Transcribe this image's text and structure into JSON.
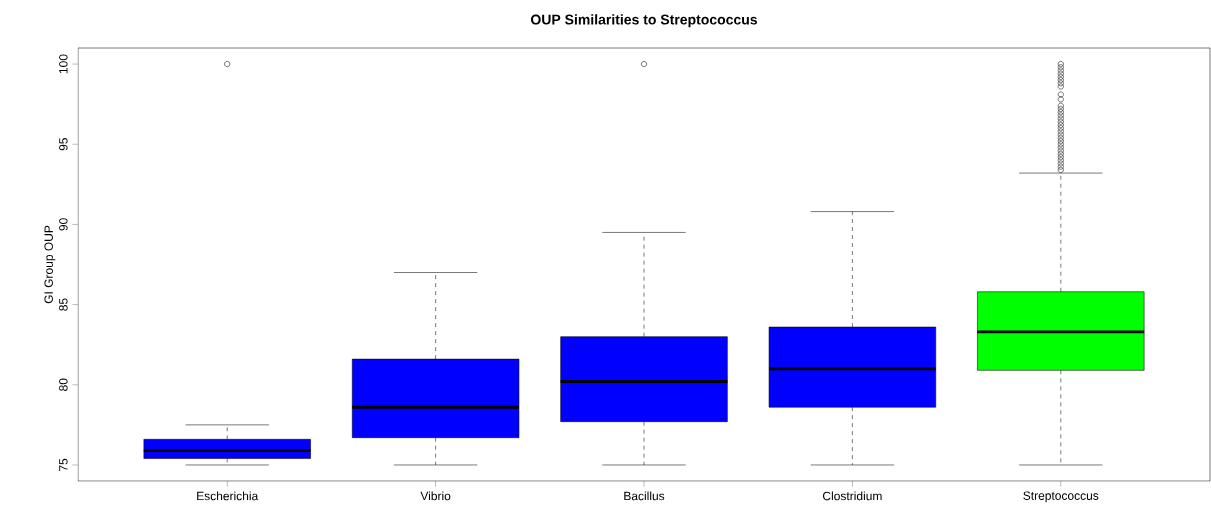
{
  "chart_data": {
    "type": "box",
    "title": "OUP Similarities to Streptococcus",
    "ylabel": "GI Group OUP",
    "categories": [
      "Escherichia",
      "Vibrio",
      "Bacillus",
      "Clostridium",
      "Streptococcus"
    ],
    "colors": [
      "#0000ff",
      "#0000ff",
      "#0000ff",
      "#0000ff",
      "#00ff00"
    ],
    "boxes": [
      {
        "low": 75,
        "q1": 75.4,
        "median": 75.9,
        "q3": 76.6,
        "high": 77.5,
        "outliers": [
          100
        ]
      },
      {
        "low": 75,
        "q1": 76.7,
        "median": 78.6,
        "q3": 81.6,
        "high": 87.0
      },
      {
        "low": 75,
        "q1": 77.7,
        "median": 80.2,
        "q3": 83.0,
        "high": 89.5,
        "outliers": [
          100
        ]
      },
      {
        "low": 75,
        "q1": 78.6,
        "median": 81.0,
        "q3": 83.6,
        "high": 90.8
      },
      {
        "low": 75,
        "q1": 80.9,
        "median": 83.3,
        "q3": 85.8,
        "high": 93.2,
        "outliers": [
          100,
          99.8,
          99.6,
          99.4,
          99.2,
          99.0,
          98.8,
          98.6,
          98.1,
          97.8,
          97.4,
          97.2,
          97.0,
          96.8,
          96.6,
          96.4,
          96.2,
          96.0,
          95.8,
          95.6,
          95.4,
          95.2,
          95.0,
          94.8,
          94.6,
          94.4,
          94.2,
          94.0,
          93.8,
          93.6,
          93.4
        ]
      }
    ],
    "ylim": [
      74,
      101
    ],
    "yticks": [
      75,
      80,
      85,
      90,
      95,
      100
    ],
    "marker": "circle"
  }
}
